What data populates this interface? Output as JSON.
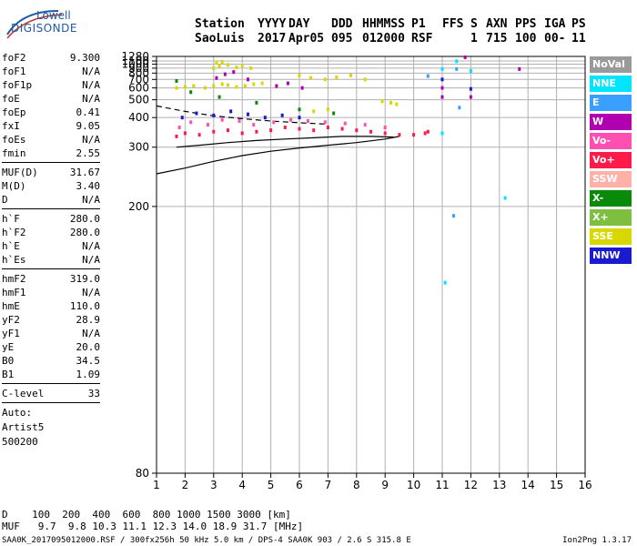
{
  "logo": {
    "line1": "Lowell",
    "line2": "DIGISONDE"
  },
  "header": {
    "labels": [
      "Station",
      "YYYY",
      "DAY",
      "DDD",
      "HHMMSS",
      "P1",
      "FFS",
      "S",
      "AXN",
      "PPS",
      "IGA",
      "PS"
    ],
    "values": [
      "SaoLuis",
      "2017",
      "Apr05",
      "095",
      "012000",
      "RSF",
      "1",
      "715",
      "100",
      "00-",
      "11"
    ]
  },
  "params": {
    "group1": [
      {
        "k": "foF2",
        "v": "9.300"
      },
      {
        "k": "foF1",
        "v": "N/A"
      },
      {
        "k": "foF1p",
        "v": "N/A"
      },
      {
        "k": "foE",
        "v": "N/A"
      },
      {
        "k": "foEp",
        "v": "0.41"
      },
      {
        "k": "fxI",
        "v": "9.05"
      },
      {
        "k": "foEs",
        "v": "N/A"
      },
      {
        "k": "fmin",
        "v": "2.55"
      }
    ],
    "group2": [
      {
        "k": "MUF(D)",
        "v": "31.67"
      },
      {
        "k": "M(D)",
        "v": "3.40"
      },
      {
        "k": "D",
        "v": "N/A"
      }
    ],
    "group3": [
      {
        "k": "h`F",
        "v": "280.0"
      },
      {
        "k": "h`F2",
        "v": "280.0"
      },
      {
        "k": "h`E",
        "v": "N/A"
      },
      {
        "k": "h`Es",
        "v": "N/A"
      }
    ],
    "group4": [
      {
        "k": "hmF2",
        "v": "319.0"
      },
      {
        "k": "hmF1",
        "v": "N/A"
      },
      {
        "k": "hmE",
        "v": "110.0"
      },
      {
        "k": "yF2",
        "v": "28.9"
      },
      {
        "k": "yF1",
        "v": "N/A"
      },
      {
        "k": "yE",
        "v": "20.0"
      },
      {
        "k": "B0",
        "v": "34.5"
      },
      {
        "k": "B1",
        "v": "1.09"
      }
    ],
    "clevel": {
      "k": "C-level",
      "v": "33"
    },
    "auto": [
      "Auto:",
      "Artist5",
      "500200"
    ]
  },
  "legend": [
    {
      "label": "NoVal",
      "color": "#9a9a9a"
    },
    {
      "label": "NNE",
      "color": "#00e5ff"
    },
    {
      "label": "E",
      "color": "#3aa0ff"
    },
    {
      "label": "W",
      "color": "#b000b0"
    },
    {
      "label": "Vo-",
      "color": "#ff4fb0"
    },
    {
      "label": "Vo+",
      "color": "#ff1a4a"
    },
    {
      "label": "SSW",
      "color": "#ffb0a8"
    },
    {
      "label": "X-",
      "color": "#0a8a0a"
    },
    {
      "label": "X+",
      "color": "#7fbf3f"
    },
    {
      "label": "SSE",
      "color": "#d8d800"
    },
    {
      "label": "NNW",
      "color": "#1a1ad0"
    }
  ],
  "bottom": {
    "d_row": "D    100  200  400  600  800 1000 1500 3000 [km]",
    "muf_row": "MUF   9.7  9.8 10.3 11.1 12.3 14.0 18.9 31.7 [MHz]"
  },
  "footer": {
    "left": "SAA0K_2017095012000.RSF / 300fx256h 50 kHz 5.0 km / DPS-4 SAA0K 903 / 2.6 S 315.8 E",
    "right": "Ion2Png 1.3.17"
  },
  "chart_data": {
    "type": "scatter",
    "title": "",
    "xlabel": "",
    "ylabel": "",
    "xlim": [
      1,
      16
    ],
    "ylim": [
      80,
      1280
    ],
    "xticks": [
      1,
      2,
      3,
      4,
      5,
      6,
      7,
      8,
      9,
      10,
      11,
      12,
      13,
      14,
      15,
      16
    ],
    "yticks": [
      80,
      200,
      300,
      400,
      500,
      600,
      700,
      800,
      900,
      1000,
      1100,
      1280
    ],
    "grid": true,
    "scale": "reciprocal-height",
    "series": [
      {
        "color": "#d8d800",
        "points": [
          [
            1.7,
            600
          ],
          [
            2.0,
            610
          ],
          [
            2.3,
            620
          ],
          [
            2.7,
            600
          ],
          [
            3.0,
            620
          ],
          [
            3.3,
            640
          ],
          [
            3.5,
            630
          ],
          [
            3.8,
            610
          ],
          [
            4.1,
            620
          ],
          [
            4.4,
            640
          ],
          [
            4.7,
            650
          ],
          [
            3.0,
            900
          ],
          [
            3.2,
            950
          ],
          [
            3.5,
            980
          ],
          [
            3.8,
            920
          ],
          [
            4.0,
            960
          ],
          [
            4.3,
            900
          ],
          [
            3.3,
            1070
          ],
          [
            3.1,
            1050
          ],
          [
            6.0,
            760
          ],
          [
            6.4,
            720
          ],
          [
            6.9,
            700
          ],
          [
            7.3,
            730
          ],
          [
            7.8,
            760
          ],
          [
            8.3,
            700
          ],
          [
            8.9,
            490
          ],
          [
            9.2,
            480
          ],
          [
            9.4,
            470
          ],
          [
            6.5,
            430
          ],
          [
            7.0,
            440
          ]
        ]
      },
      {
        "color": "#b000b0",
        "points": [
          [
            3.1,
            720
          ],
          [
            3.4,
            780
          ],
          [
            3.7,
            820
          ],
          [
            4.2,
            700
          ],
          [
            5.2,
            620
          ],
          [
            5.6,
            650
          ],
          [
            6.1,
            600
          ],
          [
            11.8,
            1240
          ],
          [
            11.0,
            600
          ],
          [
            11.0,
            520
          ],
          [
            12.0,
            520
          ],
          [
            13.7,
            880
          ]
        ]
      },
      {
        "color": "#ff1a4a",
        "points": [
          [
            1.7,
            330
          ],
          [
            2.0,
            340
          ],
          [
            2.5,
            335
          ],
          [
            3.0,
            345
          ],
          [
            3.5,
            350
          ],
          [
            4.0,
            340
          ],
          [
            4.5,
            345
          ],
          [
            5.0,
            350
          ],
          [
            5.5,
            360
          ],
          [
            6.0,
            355
          ],
          [
            6.5,
            350
          ],
          [
            7.0,
            360
          ],
          [
            7.5,
            355
          ],
          [
            8.0,
            350
          ],
          [
            8.5,
            345
          ],
          [
            9.0,
            340
          ],
          [
            9.5,
            335
          ],
          [
            10.0,
            335
          ],
          [
            10.4,
            340
          ],
          [
            10.5,
            345
          ]
        ]
      },
      {
        "color": "#ff4fb0",
        "points": [
          [
            1.8,
            360
          ],
          [
            2.2,
            380
          ],
          [
            2.8,
            370
          ],
          [
            3.3,
            390
          ],
          [
            3.9,
            385
          ],
          [
            4.4,
            370
          ],
          [
            5.1,
            380
          ],
          [
            5.7,
            390
          ],
          [
            6.3,
            385
          ],
          [
            6.9,
            380
          ],
          [
            7.6,
            375
          ],
          [
            8.3,
            370
          ],
          [
            9.0,
            360
          ]
        ]
      },
      {
        "color": "#1a1ad0",
        "points": [
          [
            1.9,
            400
          ],
          [
            2.4,
            420
          ],
          [
            3.0,
            410
          ],
          [
            3.6,
            430
          ],
          [
            4.2,
            415
          ],
          [
            4.8,
            400
          ],
          [
            5.4,
            410
          ],
          [
            6.0,
            400
          ],
          [
            11.0,
            700
          ],
          [
            12.0,
            590
          ]
        ]
      },
      {
        "color": "#0a8a0a",
        "points": [
          [
            1.7,
            680
          ],
          [
            2.2,
            560
          ],
          [
            3.2,
            520
          ],
          [
            4.5,
            480
          ],
          [
            6.0,
            440
          ],
          [
            7.2,
            420
          ]
        ]
      },
      {
        "color": "#00e5ff",
        "points": [
          [
            11.5,
            1090
          ],
          [
            12.0,
            840
          ],
          [
            11.0,
            880
          ],
          [
            11.0,
            340
          ],
          [
            13.2,
            210
          ],
          [
            11.1,
            140
          ]
        ]
      },
      {
        "color": "#3aa0ff",
        "points": [
          [
            10.5,
            750
          ],
          [
            11.5,
            880
          ],
          [
            11.6,
            450
          ],
          [
            11.4,
            190
          ]
        ]
      }
    ],
    "lines": [
      {
        "style": "solid",
        "points": [
          [
            1,
            245
          ],
          [
            2,
            255
          ],
          [
            3,
            268
          ],
          [
            4,
            280
          ],
          [
            5,
            290
          ],
          [
            6,
            298
          ],
          [
            7,
            305
          ],
          [
            8,
            312
          ],
          [
            9,
            322
          ],
          [
            9.5,
            330
          ]
        ]
      },
      {
        "style": "solid",
        "points": [
          [
            1.7,
            300
          ],
          [
            2.5,
            305
          ],
          [
            3.5,
            312
          ],
          [
            4.5,
            318
          ],
          [
            5.5,
            322
          ],
          [
            6.5,
            326
          ],
          [
            7.5,
            330
          ],
          [
            8.5,
            330
          ],
          [
            9.3,
            328
          ]
        ]
      },
      {
        "style": "dashed",
        "points": [
          [
            1,
            460
          ],
          [
            2,
            430
          ],
          [
            3,
            408
          ],
          [
            4,
            395
          ],
          [
            5,
            385
          ],
          [
            6,
            378
          ],
          [
            7,
            372
          ]
        ]
      }
    ]
  }
}
